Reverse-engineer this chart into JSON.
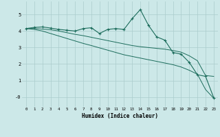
{
  "xlabel": "Humidex (Indice chaleur)",
  "xlim": [
    -0.5,
    23.5
  ],
  "ylim": [
    -0.6,
    5.8
  ],
  "background_color": "#cce8e8",
  "grid_color": "#aacccc",
  "line_color": "#1a6b5a",
  "line1_x": [
    0,
    1,
    2,
    3,
    4,
    5,
    6,
    7,
    8,
    9,
    10,
    11,
    12,
    13,
    14,
    15,
    16,
    17,
    18,
    19,
    20,
    21,
    22,
    23
  ],
  "line1_y": [
    4.15,
    4.22,
    4.25,
    4.18,
    4.1,
    4.05,
    4.0,
    4.15,
    4.2,
    3.85,
    4.1,
    4.15,
    4.1,
    4.75,
    5.3,
    4.35,
    3.65,
    3.45,
    2.7,
    2.6,
    2.1,
    1.35,
    1.25,
    -0.05
  ],
  "line2_x": [
    0,
    1,
    2,
    3,
    4,
    5,
    6,
    7,
    8,
    9,
    10,
    11,
    12,
    13,
    14,
    15,
    16,
    17,
    18,
    19,
    20,
    21,
    22,
    23
  ],
  "line2_y": [
    4.15,
    4.15,
    4.12,
    4.08,
    4.0,
    3.9,
    3.8,
    3.72,
    3.62,
    3.52,
    3.42,
    3.32,
    3.22,
    3.12,
    3.05,
    3.0,
    2.95,
    2.9,
    2.82,
    2.72,
    2.5,
    2.2,
    1.3,
    1.25
  ],
  "line3_x": [
    0,
    1,
    2,
    3,
    4,
    5,
    6,
    7,
    8,
    9,
    10,
    11,
    12,
    13,
    14,
    15,
    16,
    17,
    18,
    19,
    20,
    21,
    22,
    23
  ],
  "line3_y": [
    4.15,
    4.1,
    4.0,
    3.85,
    3.7,
    3.55,
    3.4,
    3.25,
    3.12,
    2.98,
    2.84,
    2.7,
    2.56,
    2.46,
    2.36,
    2.26,
    2.16,
    2.06,
    1.96,
    1.82,
    1.62,
    1.38,
    0.45,
    -0.08
  ],
  "xticks": [
    0,
    1,
    2,
    3,
    4,
    5,
    6,
    7,
    8,
    9,
    10,
    11,
    12,
    13,
    14,
    15,
    16,
    17,
    18,
    19,
    20,
    21,
    22,
    23
  ],
  "yticks": [
    0,
    1,
    2,
    3,
    4,
    5
  ],
  "ytick_labels": [
    "-0",
    "1",
    "2",
    "3",
    "4",
    "5"
  ]
}
